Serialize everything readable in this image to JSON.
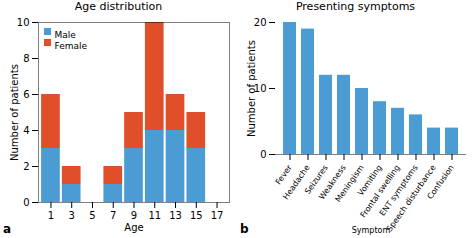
{
  "chart_data": [
    {
      "type": "bar",
      "title": "Age distribution",
      "xlabel": "Age",
      "ylabel": "Number of patients",
      "x": [
        1,
        3,
        5,
        7,
        9,
        11,
        13,
        15,
        17
      ],
      "series": [
        {
          "name": "Male",
          "color": "#4b9cd3",
          "values": [
            3,
            1,
            0,
            1,
            3,
            4,
            4,
            3,
            0
          ]
        },
        {
          "name": "Female",
          "color": "#e04e2a",
          "values": [
            3,
            1,
            0,
            1,
            2,
            6,
            2,
            2,
            0
          ]
        }
      ],
      "stacked": true,
      "xlim": [
        -0.2,
        18.2
      ],
      "xticks": [
        1,
        3,
        5,
        7,
        9,
        11,
        13,
        15,
        17
      ],
      "ylim": [
        0,
        10
      ],
      "yticks": [
        0,
        2,
        4,
        6,
        8,
        10
      ],
      "legend": "upper left",
      "annotations": [
        "a"
      ]
    },
    {
      "type": "bar",
      "title": "Presenting symptoms",
      "xlabel": "Symptom",
      "ylabel": "Number of patients",
      "categories": [
        "Fever",
        "Headache",
        "Seizures",
        "Weakness",
        "Meningism",
        "Vomiting",
        "Frontal swelling",
        "ENT symptoms",
        "Speech disturbance",
        "Confusion"
      ],
      "values": [
        20,
        19,
        12,
        12,
        10,
        8,
        7,
        6,
        4,
        4
      ],
      "color": "#4b9cd3",
      "ylim": [
        0,
        20
      ],
      "yticks": [
        0,
        10,
        20
      ],
      "annotations": [
        "b"
      ]
    }
  ]
}
